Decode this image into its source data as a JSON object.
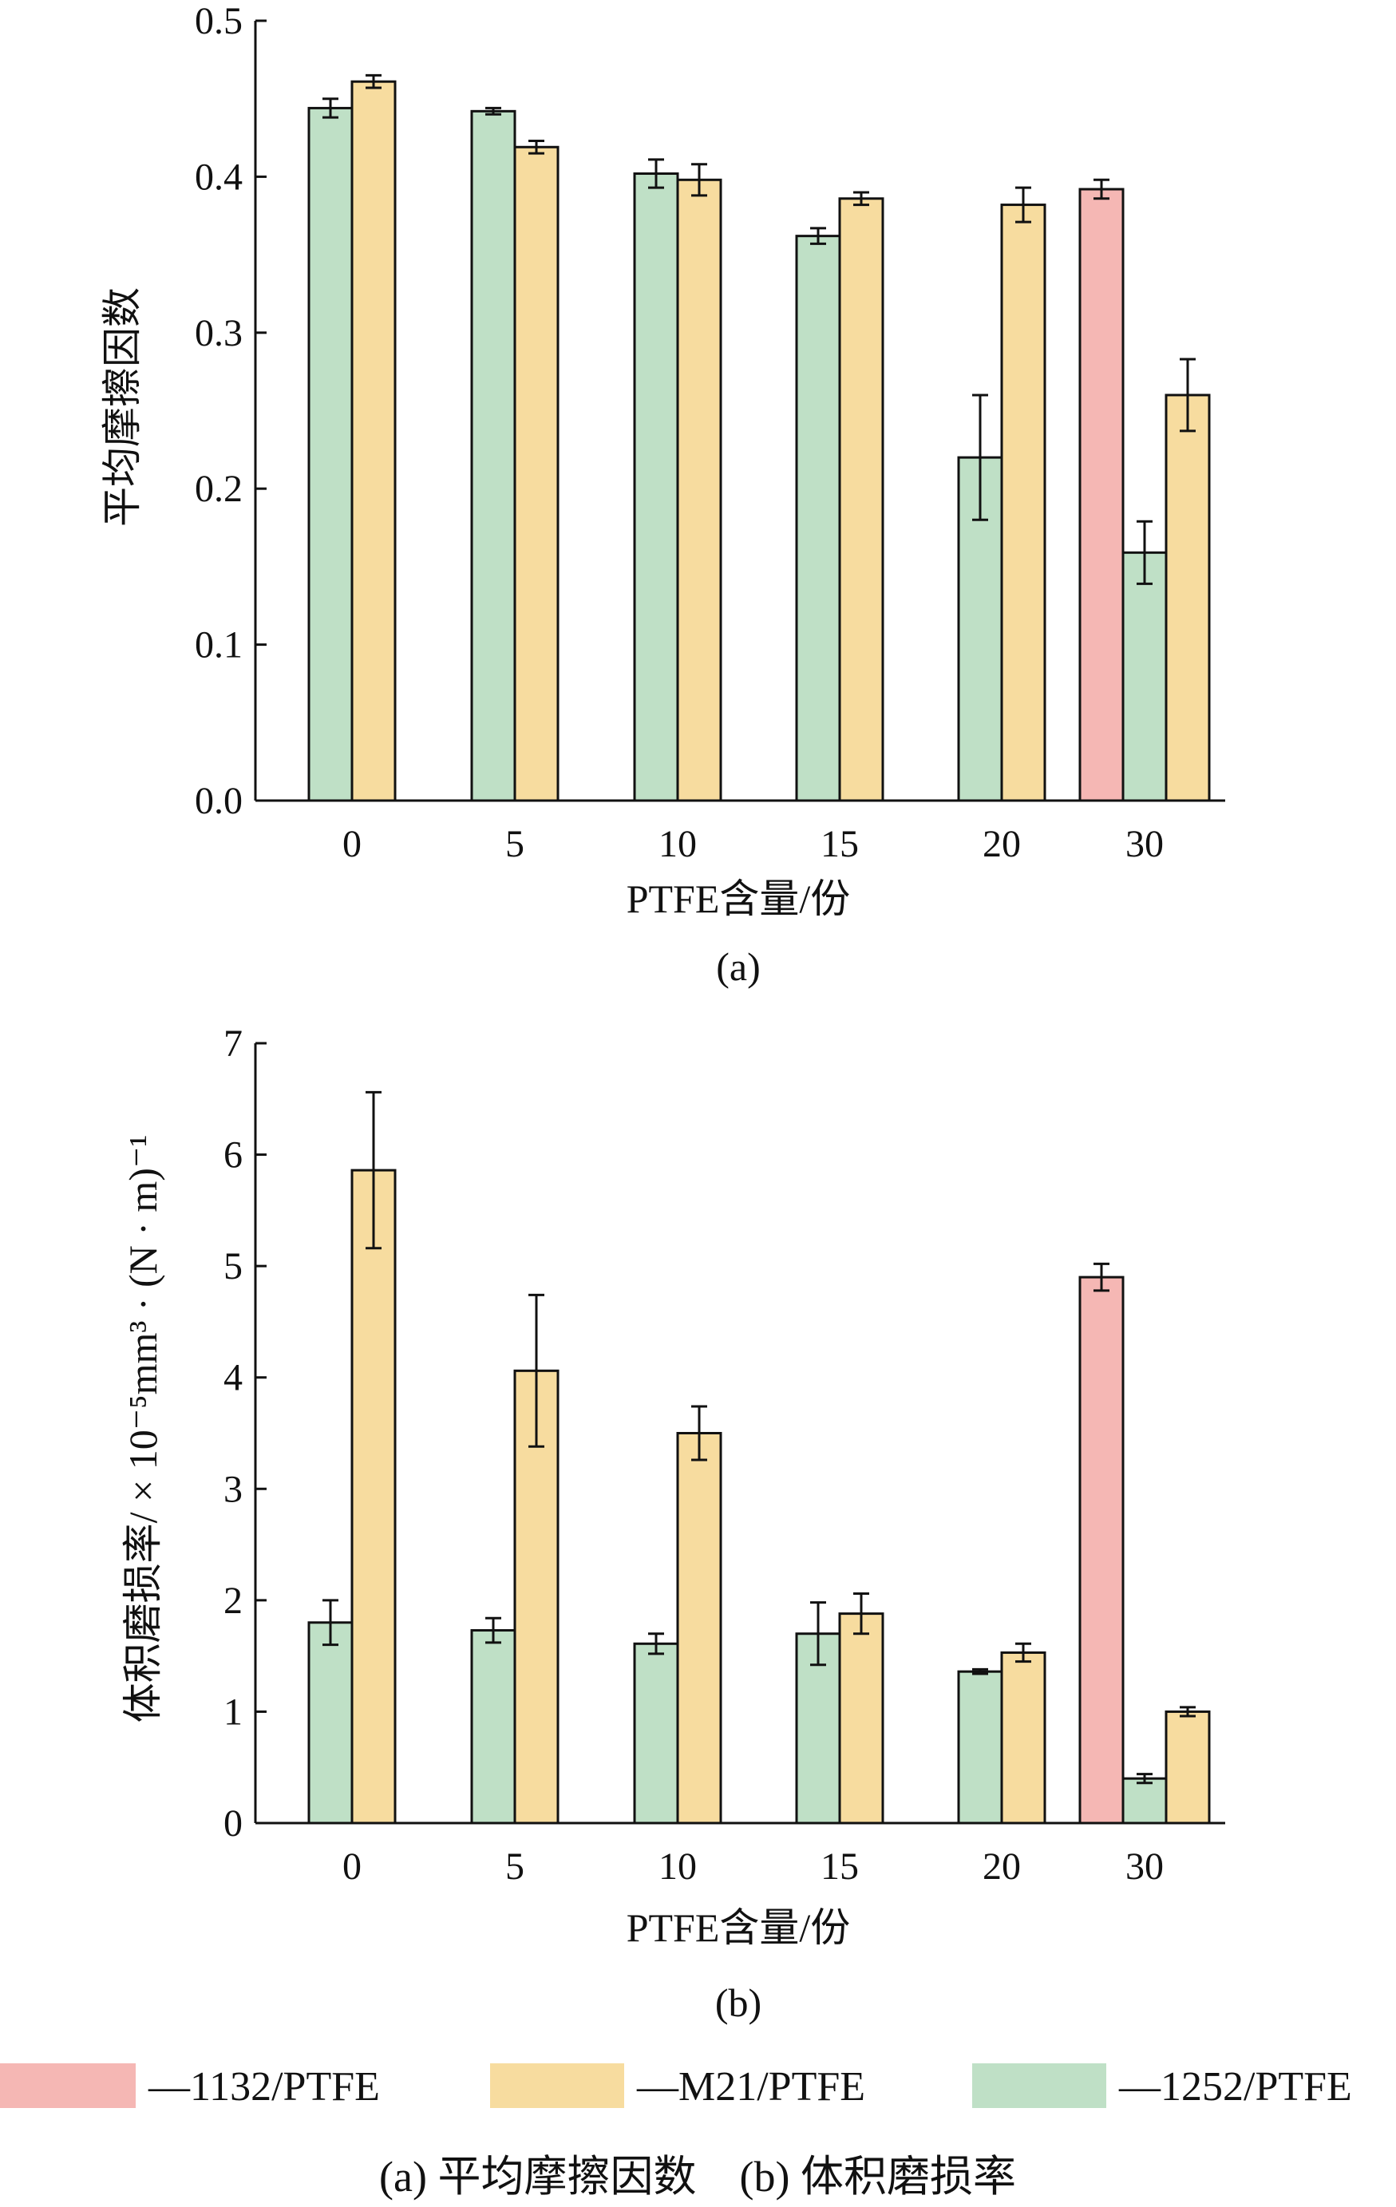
{
  "legend": [
    {
      "key": "1132",
      "label": "—1132/PTFE",
      "color": "#f5b7b4"
    },
    {
      "key": "M21",
      "label": "—M21/PTFE",
      "color": "#f7dc9f"
    },
    {
      "key": "1252",
      "label": "—1252/PTFE",
      "color": "#bfe0c6"
    }
  ],
  "figure_caption": "(a) 平均摩擦因数　(b) 体积磨损率",
  "chart_data": [
    {
      "type": "bar",
      "panel_label": "(a)",
      "categories": [
        "0",
        "5",
        "10",
        "15",
        "20",
        "30"
      ],
      "xlabel": "PTFE含量/份",
      "ylabel": "平均摩擦因数",
      "ylim": [
        0,
        0.5
      ],
      "yticks": [
        "0.0",
        "0.1",
        "0.2",
        "0.3",
        "0.4",
        "0.5"
      ],
      "ytick_values": [
        0,
        0.1,
        0.2,
        0.3,
        0.4,
        0.5
      ],
      "series": [
        {
          "key": "1132",
          "values": [
            null,
            null,
            null,
            null,
            null,
            0.392
          ],
          "errors": [
            null,
            null,
            null,
            null,
            null,
            0.006
          ]
        },
        {
          "key": "1252",
          "values": [
            0.444,
            0.442,
            0.402,
            0.362,
            0.22,
            0.159
          ],
          "errors": [
            0.006,
            0.002,
            0.009,
            0.005,
            0.04,
            0.02
          ]
        },
        {
          "key": "M21",
          "values": [
            0.461,
            0.419,
            0.398,
            0.386,
            0.382,
            0.26
          ],
          "errors": [
            0.004,
            0.004,
            0.01,
            0.004,
            0.011,
            0.023
          ]
        }
      ]
    },
    {
      "type": "bar",
      "panel_label": "(b)",
      "categories": [
        "0",
        "5",
        "10",
        "15",
        "20",
        "30"
      ],
      "xlabel": "PTFE含量/份",
      "ylabel": "体积磨损率/ × 10⁻⁵mm³ · (N · m)⁻¹",
      "ylim": [
        0,
        7
      ],
      "yticks": [
        "0",
        "1",
        "2",
        "3",
        "4",
        "5",
        "6",
        "7"
      ],
      "ytick_values": [
        0,
        1,
        2,
        3,
        4,
        5,
        6,
        7
      ],
      "series": [
        {
          "key": "1132",
          "values": [
            null,
            null,
            null,
            null,
            null,
            4.9
          ],
          "errors": [
            null,
            null,
            null,
            null,
            null,
            0.12
          ]
        },
        {
          "key": "1252",
          "values": [
            1.8,
            1.73,
            1.61,
            1.7,
            1.36,
            0.4
          ],
          "errors": [
            0.2,
            0.11,
            0.09,
            0.28,
            0.02,
            0.04
          ]
        },
        {
          "key": "M21",
          "values": [
            5.86,
            4.06,
            3.5,
            1.88,
            1.53,
            1.0
          ],
          "errors": [
            0.7,
            0.68,
            0.24,
            0.18,
            0.08,
            0.04
          ]
        }
      ]
    }
  ]
}
